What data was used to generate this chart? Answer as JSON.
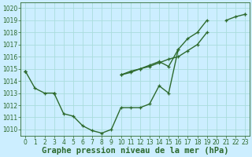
{
  "xlabel": "Graphe pression niveau de la mer (hPa)",
  "bg_color": "#cceeff",
  "grid_color": "#aadddd",
  "line_color": "#2d6a2d",
  "x": [
    0,
    1,
    2,
    3,
    4,
    5,
    6,
    7,
    8,
    9,
    10,
    11,
    12,
    13,
    14,
    15,
    16,
    17,
    18,
    19,
    20,
    21,
    22,
    23
  ],
  "line1": [
    1014.8,
    1013.4,
    1013.0,
    1013.0,
    1011.3,
    1011.1,
    1010.3,
    1009.9,
    1009.7,
    1010.0,
    1011.8,
    1011.8,
    1011.8,
    1012.1,
    1013.6,
    1013.0,
    1016.6,
    null,
    null,
    null,
    null,
    null,
    null,
    null
  ],
  "line2": [
    1014.8,
    null,
    null,
    1013.0,
    null,
    null,
    null,
    null,
    null,
    null,
    1014.5,
    1014.8,
    1015.0,
    1015.3,
    1015.6,
    1015.2,
    1016.6,
    1017.5,
    1018.0,
    1019.0,
    null,
    null,
    null,
    1019.5
  ],
  "line3": [
    1014.8,
    null,
    null,
    1013.0,
    null,
    null,
    null,
    null,
    null,
    null,
    1014.5,
    1014.7,
    1015.0,
    1015.2,
    1015.5,
    1015.8,
    1016.0,
    1016.5,
    1017.0,
    1018.0,
    null,
    1019.0,
    1019.3,
    1019.5
  ],
  "ylim": [
    1009.5,
    1020.5
  ],
  "xlim": [
    -0.5,
    23.5
  ],
  "yticks": [
    1010,
    1011,
    1012,
    1013,
    1014,
    1015,
    1016,
    1017,
    1018,
    1019,
    1020
  ],
  "xticks": [
    0,
    1,
    2,
    3,
    4,
    5,
    6,
    7,
    8,
    9,
    10,
    11,
    12,
    13,
    14,
    15,
    16,
    17,
    18,
    19,
    20,
    21,
    22,
    23
  ],
  "tick_fontsize": 5.5,
  "xlabel_fontsize": 7.5,
  "marker": "+",
  "markersize": 3.5,
  "linewidth": 1.0
}
